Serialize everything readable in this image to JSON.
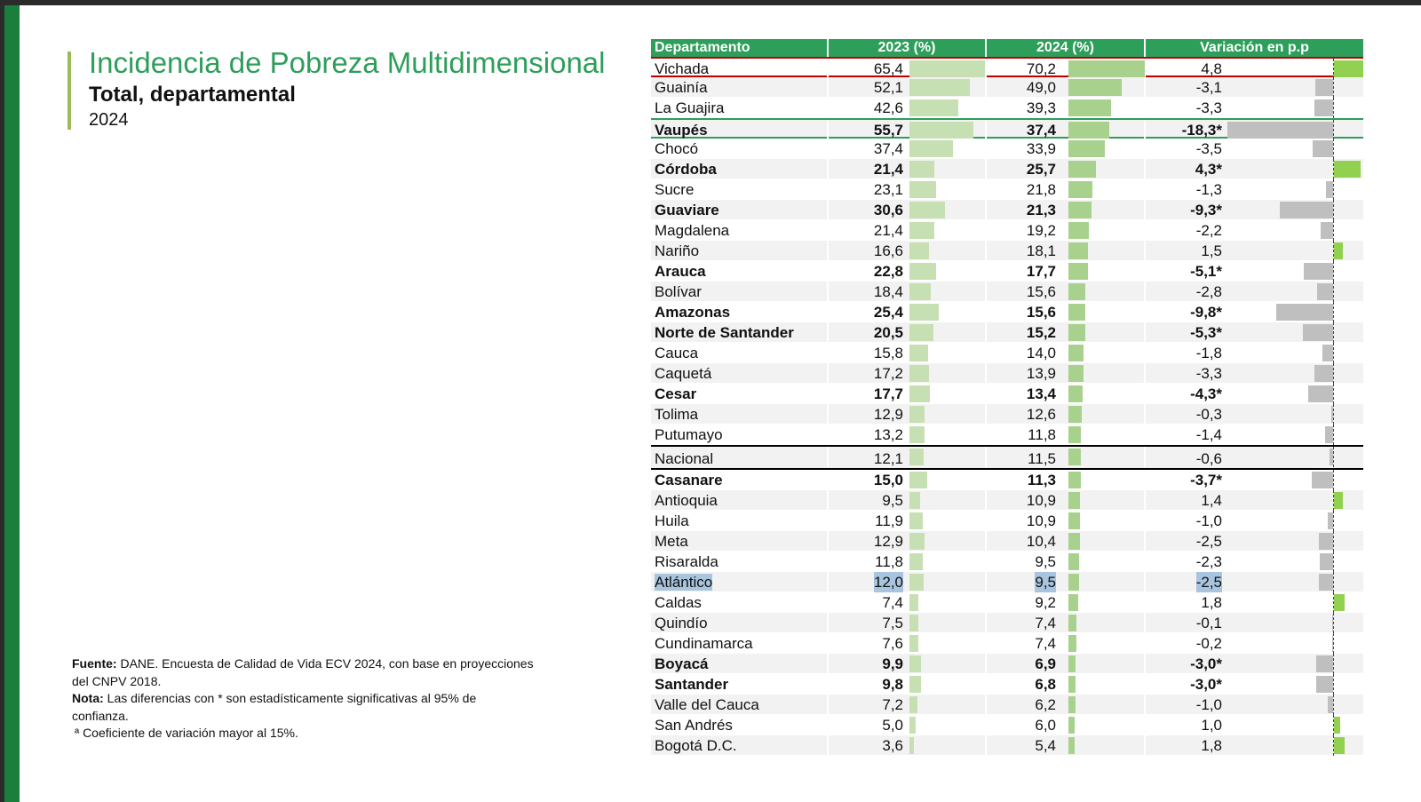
{
  "title": "Incidencia de Pobreza Multidimensional",
  "subtitle": "Total, departamental",
  "year": "2024",
  "colors": {
    "header": "#2e9e5b",
    "bar2023": "#c6e0b4",
    "bar2024": "#a9d18e",
    "positive": "#92d050",
    "negative": "#bfbfbf",
    "accent": "#1a7f3c"
  },
  "notes": {
    "fuente_label": "Fuente:",
    "fuente": "DANE. Encuesta de Calidad de Vida ECV 2024, con base en proyecciones del CNPV 2018.",
    "nota_label": "Nota:",
    "nota": "Las diferencias con * son estadísticamente significativas al 95% de confianza.",
    "cv": "ª Coeficiente de variación mayor al 15%."
  },
  "table": {
    "headers": [
      "Departamento",
      "2023 (%)",
      "2024 (%)",
      "Variación en p.p"
    ],
    "rows": [
      {
        "name": "Vichada",
        "y2023": "65,4",
        "y2024": "70,2",
        "var": "4,8",
        "sig": false
      },
      {
        "name": "Guainía",
        "y2023": "52,1",
        "y2024": "49,0",
        "var": "-3,1",
        "sig": false
      },
      {
        "name": "La Guajira",
        "y2023": "42,6",
        "y2024": "39,3",
        "var": "-3,3",
        "sig": false
      },
      {
        "name": "Vaupés",
        "y2023": "55,7",
        "y2024": "37,4",
        "var": "-18,3*",
        "sig": true
      },
      {
        "name": "Chocó",
        "y2023": "37,4",
        "y2024": "33,9",
        "var": "-3,5",
        "sig": false
      },
      {
        "name": "Córdoba",
        "y2023": "21,4",
        "y2024": "25,7",
        "var": "4,3*",
        "sig": true
      },
      {
        "name": "Sucre",
        "y2023": "23,1",
        "y2024": "21,8",
        "var": "-1,3",
        "sig": false
      },
      {
        "name": "Guaviare",
        "y2023": "30,6",
        "y2024": "21,3",
        "var": "-9,3*",
        "sig": true
      },
      {
        "name": "Magdalena",
        "y2023": "21,4",
        "y2024": "19,2",
        "var": "-2,2",
        "sig": false
      },
      {
        "name": "Nariño",
        "y2023": "16,6",
        "y2024": "18,1",
        "var": "1,5",
        "sig": false
      },
      {
        "name": "Arauca",
        "y2023": "22,8",
        "y2024": "17,7",
        "var": "-5,1*",
        "sig": true
      },
      {
        "name": "Bolívar",
        "y2023": "18,4",
        "y2024": "15,6",
        "var": "-2,8",
        "sig": false
      },
      {
        "name": "Amazonas",
        "y2023": "25,4",
        "y2024": "15,6",
        "var": "-9,8*",
        "sig": true
      },
      {
        "name": "Norte de Santander",
        "y2023": "20,5",
        "y2024": "15,2",
        "var": "-5,3*",
        "sig": true
      },
      {
        "name": "Cauca",
        "y2023": "15,8",
        "y2024": "14,0",
        "var": "-1,8",
        "sig": false
      },
      {
        "name": "Caquetá",
        "y2023": "17,2",
        "y2024": "13,9",
        "var": "-3,3",
        "sig": false
      },
      {
        "name": "Cesar",
        "y2023": "17,7",
        "y2024": "13,4",
        "var": "-4,3*",
        "sig": true
      },
      {
        "name": "Tolima",
        "y2023": "12,9",
        "y2024": "12,6",
        "var": "-0,3",
        "sig": false
      },
      {
        "name": "Putumayo",
        "y2023": "13,2",
        "y2024": "11,8",
        "var": "-1,4",
        "sig": false
      },
      {
        "name": "Nacional",
        "y2023": "12,1",
        "y2024": "11,5",
        "var": "-0,6",
        "sig": false,
        "national": true
      },
      {
        "name": "Casanare",
        "y2023": "15,0",
        "y2024": "11,3",
        "var": "-3,7*",
        "sig": true
      },
      {
        "name": "Antioquia",
        "y2023": "9,5",
        "y2024": "10,9",
        "var": "1,4",
        "sig": false
      },
      {
        "name": "Huila",
        "y2023": "11,9",
        "y2024": "10,9",
        "var": "-1,0",
        "sig": false
      },
      {
        "name": "Meta",
        "y2023": "12,9",
        "y2024": "10,4",
        "var": "-2,5",
        "sig": false
      },
      {
        "name": "Risaralda",
        "y2023": "11,8",
        "y2024": "9,5",
        "var": "-2,3",
        "sig": false
      },
      {
        "name": "Atlántico",
        "y2023": "12,0",
        "y2024": "9,5",
        "var": "-2,5",
        "sig": false,
        "selected": true
      },
      {
        "name": "Caldas",
        "y2023": "7,4",
        "y2024": "9,2",
        "var": "1,8",
        "sig": false
      },
      {
        "name": "Quindío",
        "y2023": "7,5",
        "y2024": "7,4",
        "var": "-0,1",
        "sig": false
      },
      {
        "name": "Cundinamarca",
        "y2023": "7,6",
        "y2024": "7,4",
        "var": "-0,2",
        "sig": false
      },
      {
        "name": "Boyacá",
        "y2023": "9,9",
        "y2024": "6,9",
        "var": "-3,0*",
        "sig": true
      },
      {
        "name": "Santander",
        "y2023": "9,8",
        "y2024": "6,8",
        "var": "-3,0*",
        "sig": true
      },
      {
        "name": "Valle del Cauca",
        "y2023": "7,2",
        "y2024": "6,2",
        "var": "-1,0",
        "sig": false
      },
      {
        "name": "San Andrés",
        "y2023": "5,0",
        "y2024": "6,0",
        "var": "1,0",
        "sig": false
      },
      {
        "name": "Bogotá D.C.",
        "y2023": "3,6",
        "y2024": "5,4",
        "var": "1,8",
        "sig": false
      }
    ]
  }
}
